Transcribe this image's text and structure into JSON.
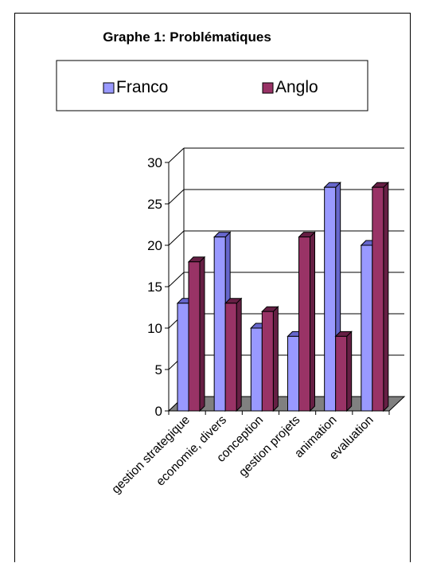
{
  "chart_data": {
    "type": "bar",
    "title": "Graphe 1: Problématiques",
    "categories": [
      "gestion strategique",
      "economie, divers",
      "conception",
      "gestion projets",
      "animation",
      "evaluation"
    ],
    "series": [
      {
        "name": "Franco",
        "values": [
          13,
          21,
          10,
          9,
          27,
          20
        ],
        "color": "#9999ff",
        "color_dark": "#6666cc"
      },
      {
        "name": "Anglo",
        "values": [
          18,
          13,
          12,
          21,
          9,
          27
        ],
        "color": "#993366",
        "color_dark": "#661f44"
      }
    ],
    "yticks": [
      0,
      5,
      10,
      15,
      20,
      25,
      30
    ],
    "ylim": [
      0,
      30
    ],
    "xlabel": "",
    "ylabel": "",
    "grid": true,
    "legend_position": "top",
    "three_d": true
  }
}
